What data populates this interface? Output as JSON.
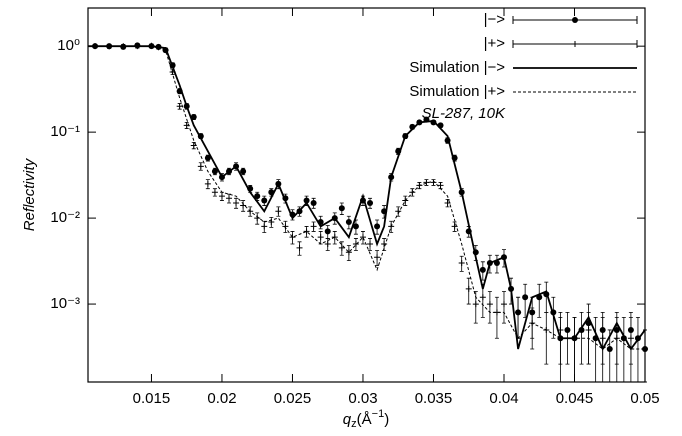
{
  "chart_data": {
    "type": "scatter",
    "y_label": "Reflectivity",
    "x_label": {
      "main": "q",
      "sub": "z",
      "rest": "(Å",
      "sup": "−1",
      "end": ")"
    },
    "annotation": "SL-287, 10K",
    "log_y": true,
    "xlim": [
      0.0105,
      0.05
    ],
    "ylim": [
      0.000124,
      2.78
    ],
    "xticks": [
      0.015,
      0.02,
      0.025,
      0.03,
      0.035,
      0.04,
      0.045,
      0.05
    ],
    "yticks": [
      {
        "value": 1,
        "label": "10⁰"
      },
      {
        "value": 0.1,
        "label": "10⁻¹"
      },
      {
        "value": 0.01,
        "label": "10⁻²"
      },
      {
        "value": 0.001,
        "label": "10⁻³"
      }
    ],
    "legend": "upper right",
    "series": [
      {
        "name": "|−>",
        "color": "#000000",
        "marker": "circle",
        "x": [
          0.011,
          0.012,
          0.013,
          0.014,
          0.015,
          0.0155,
          0.016,
          0.0165,
          0.017,
          0.0175,
          0.018,
          0.0185,
          0.019,
          0.0195,
          0.02,
          0.0205,
          0.021,
          0.0215,
          0.022,
          0.0225,
          0.023,
          0.0235,
          0.024,
          0.0245,
          0.025,
          0.0255,
          0.026,
          0.0265,
          0.027,
          0.0275,
          0.028,
          0.0285,
          0.029,
          0.0295,
          0.03,
          0.0305,
          0.031,
          0.0315,
          0.032,
          0.0325,
          0.033,
          0.0335,
          0.034,
          0.0345,
          0.035,
          0.0355,
          0.036,
          0.0365,
          0.037,
          0.0375,
          0.038,
          0.0385,
          0.039,
          0.0395,
          0.04,
          0.0405,
          0.041,
          0.0415,
          0.042,
          0.0425,
          0.043,
          0.0435,
          0.044,
          0.0445,
          0.045,
          0.0455,
          0.046,
          0.0465,
          0.047,
          0.0475,
          0.048,
          0.0485,
          0.049,
          0.0495,
          0.05
        ],
        "values": [
          1.0,
          1.0,
          0.98,
          1.02,
          1.0,
          0.98,
          0.9,
          0.6,
          0.3,
          0.2,
          0.15,
          0.09,
          0.05,
          0.035,
          0.03,
          0.035,
          0.04,
          0.035,
          0.022,
          0.018,
          0.016,
          0.02,
          0.025,
          0.017,
          0.011,
          0.012,
          0.016,
          0.015,
          0.009,
          0.007,
          0.01,
          0.013,
          0.009,
          0.008,
          0.016,
          0.015,
          0.008,
          0.012,
          0.03,
          0.06,
          0.09,
          0.115,
          0.13,
          0.14,
          0.13,
          0.12,
          0.08,
          0.05,
          0.02,
          0.007,
          0.004,
          0.0025,
          0.003,
          0.003,
          0.0035,
          0.0015,
          0.0008,
          0.0012,
          0.0008,
          0.0012,
          0.0013,
          0.0008,
          0.0004,
          0.0005,
          0.0004,
          0.0005,
          0.0006,
          0.0004,
          0.0005,
          0.0003,
          0.0005,
          0.0004,
          0.0005,
          0.0004,
          0.0003
        ],
        "errors": [
          0.05,
          0.05,
          0.05,
          0.05,
          0.05,
          0.05,
          0.05,
          0.04,
          0.02,
          0.015,
          0.01,
          0.006,
          0.004,
          0.003,
          0.003,
          0.003,
          0.004,
          0.003,
          0.002,
          0.002,
          0.002,
          0.002,
          0.003,
          0.002,
          0.0015,
          0.0015,
          0.002,
          0.002,
          0.0015,
          0.0012,
          0.0015,
          0.002,
          0.0015,
          0.0015,
          0.002,
          0.002,
          0.0015,
          0.002,
          0.003,
          0.005,
          0.006,
          0.007,
          0.007,
          0.007,
          0.007,
          0.007,
          0.006,
          0.004,
          0.002,
          0.001,
          0.0008,
          0.0006,
          0.0007,
          0.0007,
          0.0008,
          0.0005,
          0.0004,
          0.0005,
          0.0004,
          0.0005,
          0.0005,
          0.0004,
          0.0003,
          0.0003,
          0.0003,
          0.0003,
          0.0004,
          0.0003,
          0.0003,
          0.0002,
          0.0003,
          0.0003,
          0.0003,
          0.0003,
          0.0002
        ]
      },
      {
        "name": "|+>",
        "color": "#000000",
        "marker": "plus",
        "x": [
          0.011,
          0.012,
          0.013,
          0.014,
          0.015,
          0.0155,
          0.016,
          0.0165,
          0.017,
          0.0175,
          0.018,
          0.0185,
          0.019,
          0.0195,
          0.02,
          0.0205,
          0.021,
          0.0215,
          0.022,
          0.0225,
          0.023,
          0.0235,
          0.024,
          0.0245,
          0.025,
          0.0255,
          0.026,
          0.0265,
          0.027,
          0.0275,
          0.028,
          0.0285,
          0.029,
          0.0295,
          0.03,
          0.0305,
          0.031,
          0.0315,
          0.032,
          0.0325,
          0.033,
          0.0335,
          0.034,
          0.0345,
          0.035,
          0.0355,
          0.036,
          0.0365,
          0.037,
          0.0375,
          0.038,
          0.0385,
          0.039,
          0.0395,
          0.04,
          0.041,
          0.042,
          0.043,
          0.044,
          0.045,
          0.046,
          0.047,
          0.048,
          0.049,
          0.05
        ],
        "values": [
          1.0,
          0.99,
          1.0,
          1.0,
          1.01,
          0.97,
          0.9,
          0.5,
          0.2,
          0.12,
          0.07,
          0.04,
          0.025,
          0.02,
          0.018,
          0.017,
          0.015,
          0.014,
          0.012,
          0.01,
          0.008,
          0.009,
          0.012,
          0.008,
          0.006,
          0.0045,
          0.007,
          0.008,
          0.006,
          0.005,
          0.006,
          0.0045,
          0.004,
          0.005,
          0.006,
          0.005,
          0.0035,
          0.005,
          0.008,
          0.012,
          0.016,
          0.02,
          0.024,
          0.026,
          0.026,
          0.024,
          0.015,
          0.008,
          0.003,
          0.0015,
          0.001,
          0.0012,
          0.001,
          0.0008,
          0.001,
          0.0008,
          0.0006,
          0.0005,
          0.0005,
          0.0004,
          0.0005,
          0.0004,
          0.0004,
          0.0004,
          0.0003
        ],
        "errors": [
          0.05,
          0.05,
          0.05,
          0.05,
          0.05,
          0.05,
          0.05,
          0.03,
          0.015,
          0.01,
          0.006,
          0.004,
          0.003,
          0.002,
          0.002,
          0.002,
          0.002,
          0.002,
          0.0015,
          0.0015,
          0.0012,
          0.0012,
          0.0015,
          0.0012,
          0.001,
          0.0008,
          0.001,
          0.001,
          0.001,
          0.0008,
          0.001,
          0.0008,
          0.0008,
          0.0008,
          0.001,
          0.0008,
          0.0007,
          0.0008,
          0.0012,
          0.0015,
          0.002,
          0.002,
          0.002,
          0.002,
          0.002,
          0.002,
          0.0015,
          0.001,
          0.0006,
          0.0005,
          0.0004,
          0.0005,
          0.0004,
          0.0004,
          0.0004,
          0.0004,
          0.0003,
          0.0003,
          0.0003,
          0.0003,
          0.0003,
          0.0003,
          0.0003,
          0.0003,
          0.0002
        ]
      },
      {
        "name": "Simulation |−>",
        "color": "#000000",
        "line": "solid",
        "x": [
          0.0105,
          0.015,
          0.016,
          0.017,
          0.0175,
          0.018,
          0.019,
          0.02,
          0.021,
          0.022,
          0.023,
          0.024,
          0.025,
          0.026,
          0.027,
          0.028,
          0.029,
          0.03,
          0.031,
          0.0315,
          0.032,
          0.033,
          0.034,
          0.035,
          0.036,
          0.037,
          0.038,
          0.0385,
          0.039,
          0.04,
          0.0405,
          0.041,
          0.042,
          0.043,
          0.044,
          0.045,
          0.046,
          0.047,
          0.048,
          0.049,
          0.05
        ],
        "values": [
          1.0,
          1.0,
          0.95,
          0.35,
          0.2,
          0.12,
          0.06,
          0.03,
          0.04,
          0.02,
          0.012,
          0.025,
          0.01,
          0.015,
          0.008,
          0.01,
          0.006,
          0.018,
          0.005,
          0.008,
          0.03,
          0.09,
          0.13,
          0.135,
          0.09,
          0.02,
          0.0035,
          0.0015,
          0.003,
          0.0035,
          0.0015,
          0.0003,
          0.0012,
          0.0014,
          0.0004,
          0.0004,
          0.0007,
          0.0003,
          0.0006,
          0.0003,
          0.0005
        ]
      },
      {
        "name": "Simulation |+>",
        "color": "#000000",
        "line": "dashed",
        "x": [
          0.0105,
          0.015,
          0.016,
          0.017,
          0.018,
          0.019,
          0.02,
          0.021,
          0.022,
          0.023,
          0.024,
          0.025,
          0.026,
          0.027,
          0.028,
          0.029,
          0.03,
          0.031,
          0.032,
          0.033,
          0.034,
          0.035,
          0.036,
          0.037,
          0.038,
          0.039,
          0.04,
          0.041,
          0.042,
          0.043,
          0.044,
          0.045,
          0.046,
          0.047,
          0.048,
          0.049,
          0.05
        ],
        "values": [
          1.0,
          1.0,
          0.9,
          0.25,
          0.08,
          0.035,
          0.02,
          0.018,
          0.012,
          0.009,
          0.01,
          0.006,
          0.007,
          0.005,
          0.006,
          0.004,
          0.006,
          0.0025,
          0.008,
          0.016,
          0.024,
          0.027,
          0.018,
          0.005,
          0.0012,
          0.0008,
          0.0008,
          0.0004,
          0.0006,
          0.0005,
          0.0004,
          0.0004,
          0.0004,
          0.0003,
          0.0004,
          0.0003,
          0.0003
        ]
      }
    ]
  }
}
